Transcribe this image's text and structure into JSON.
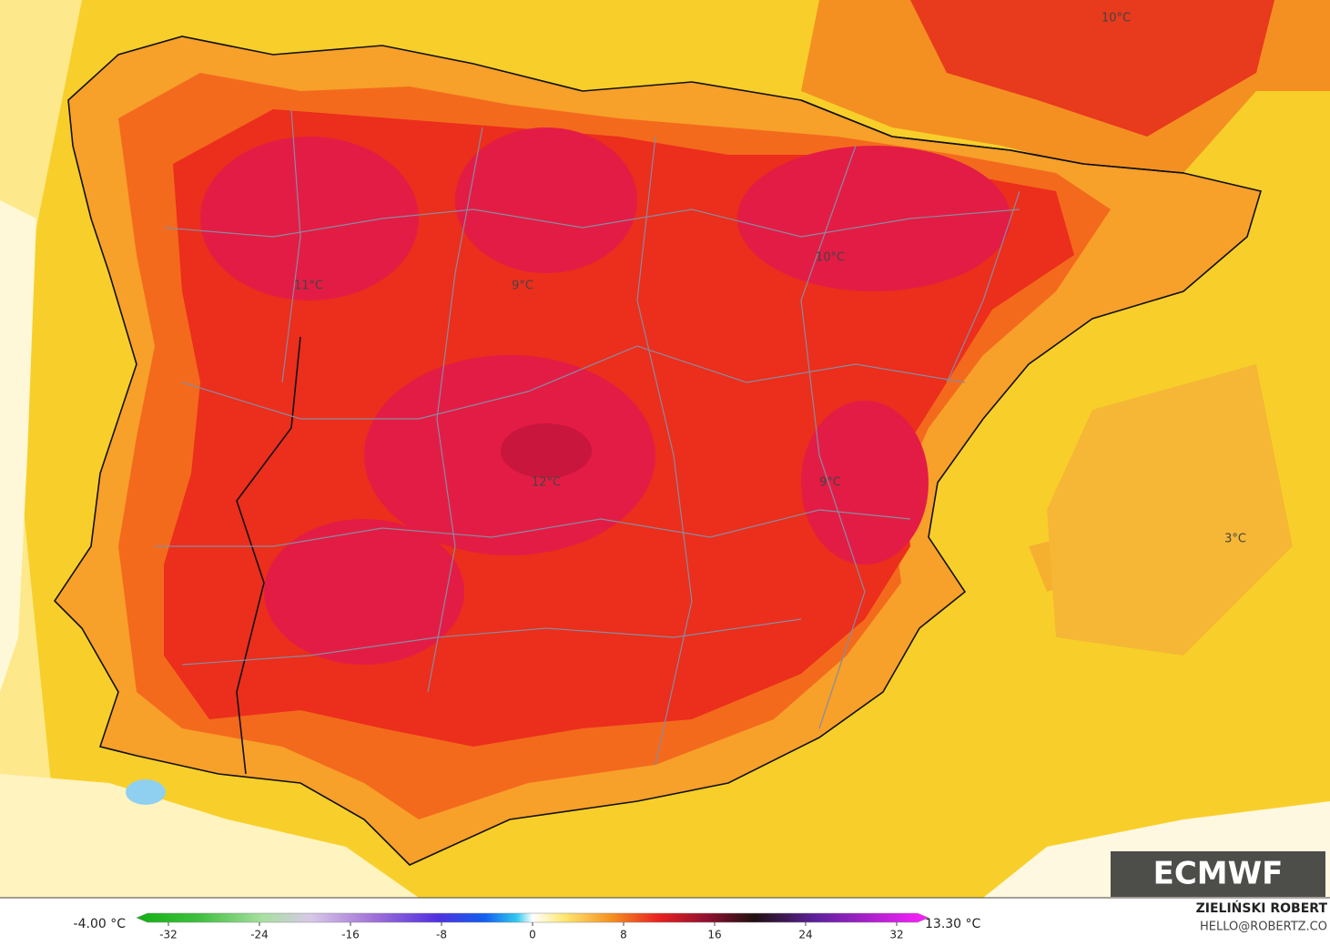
{
  "map": {
    "labels": [
      "10°C",
      "11°C",
      "9°C",
      "10°C",
      "12°C",
      "9°C",
      "3°C"
    ]
  },
  "colorbar": {
    "min_label": "-4.00 °C",
    "max_label": "13.30 °C",
    "ticks": [
      -32,
      -24,
      -16,
      -8,
      0,
      8,
      16,
      24,
      32
    ]
  },
  "credits": {
    "author": "ZIELIŃSKI ROBERT",
    "contact": "HELLO@ROBERTZ.CO"
  },
  "logo": "ECMWF"
}
